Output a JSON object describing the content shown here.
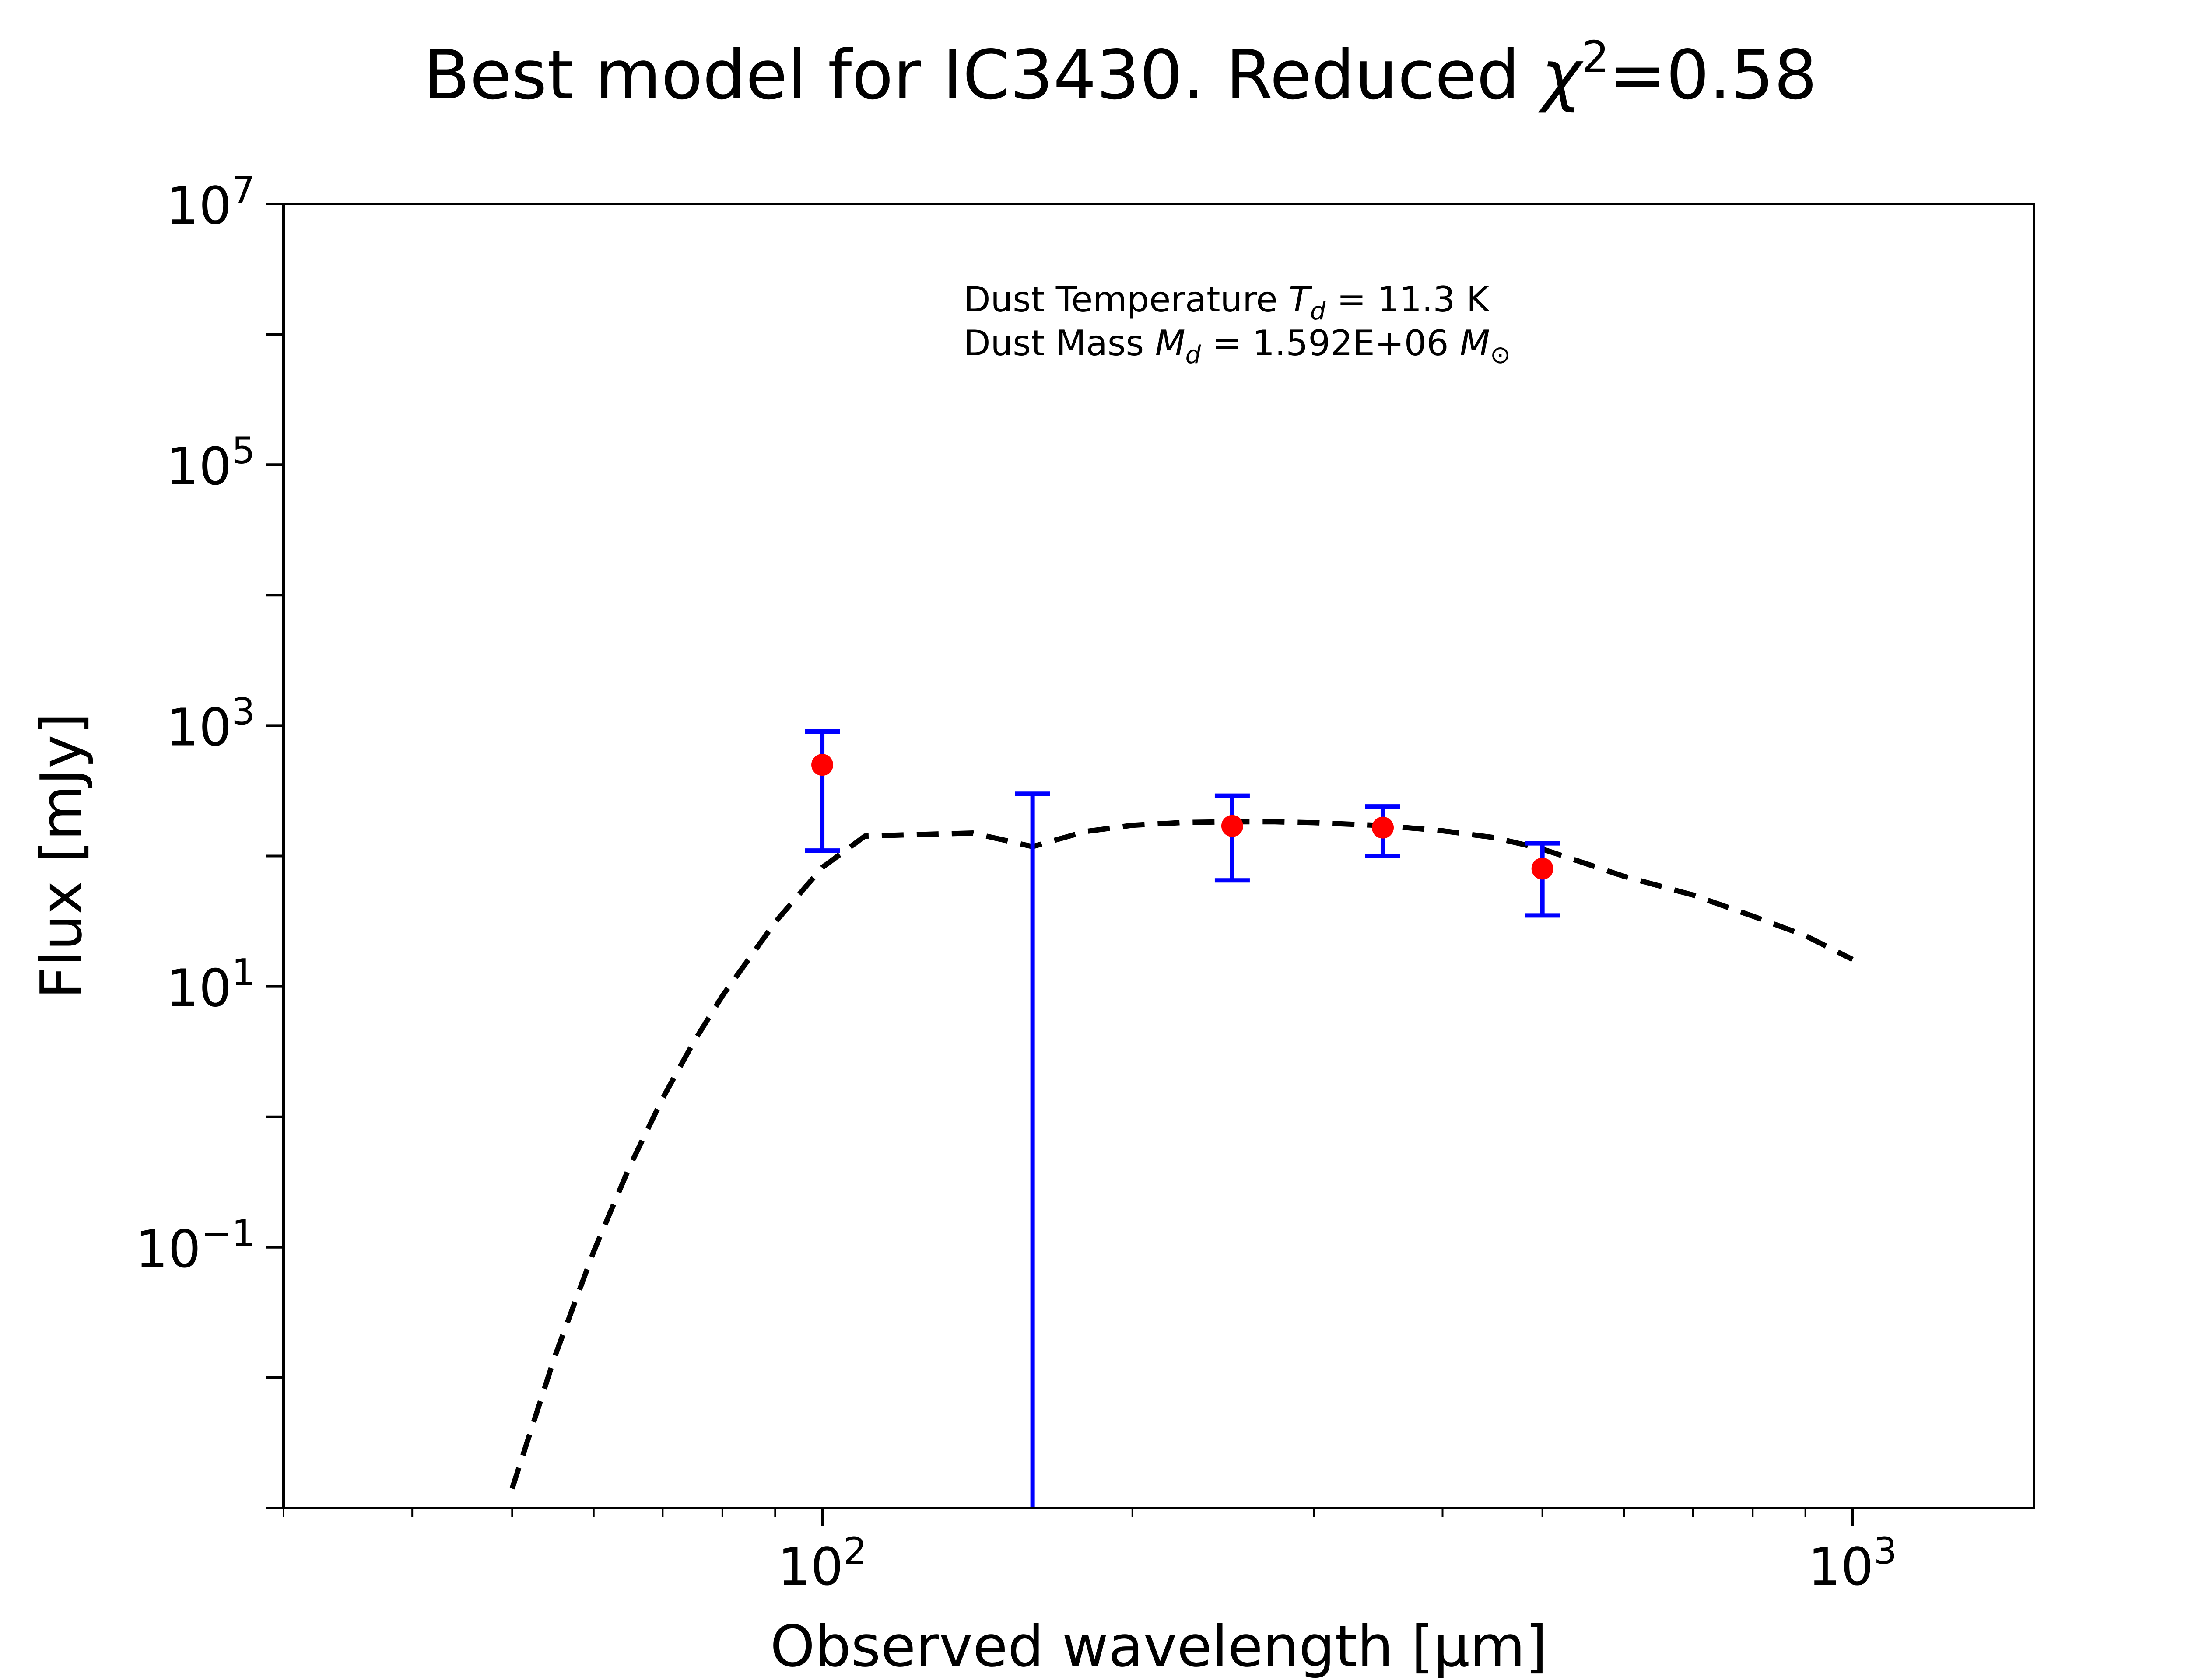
{
  "chart_data": {
    "type": "scatter",
    "title": {
      "text": "Best model for IC3430. Reduced ",
      "symbol": "χ",
      "superscript": "2",
      "suffix": "=0.58"
    },
    "xlabel": "Observed wavelength [μm]",
    "ylabel": "Flux [mJy]",
    "x_scale": "log",
    "y_scale": "log",
    "xlim": [
      30,
      1500
    ],
    "ylim": [
      0.001,
      10000000
    ],
    "x_ticks": [
      {
        "value": 100,
        "base": "10",
        "exp": "2"
      },
      {
        "value": 1000,
        "base": "10",
        "exp": "3"
      }
    ],
    "y_ticks": [
      {
        "value": 0.1,
        "base": "10",
        "exp": "−1"
      },
      {
        "value": 10,
        "base": "10",
        "exp": "1"
      },
      {
        "value": 1000,
        "base": "10",
        "exp": "3"
      },
      {
        "value": 100000,
        "base": "10",
        "exp": "5"
      },
      {
        "value": 10000000,
        "base": "10",
        "exp": "7"
      }
    ],
    "annotation": {
      "line1": {
        "prefix": "Dust Temperature ",
        "sym": "T",
        "sub": "d",
        "suffix": " = 11.3 K"
      },
      "line2": {
        "prefix": "Dust Mass ",
        "sym": "M",
        "sub": "d",
        "middle": " = 1.592E+06 ",
        "unit_sym": "M",
        "unit_sub": "⊙"
      }
    },
    "series": [
      {
        "type": "errorbar",
        "points": [
          {
            "x": 100,
            "y": 500,
            "ylow": 110,
            "yhigh": 900
          },
          {
            "x": 160,
            "y": null,
            "ylow": 0.001,
            "yhigh": 300
          },
          {
            "x": 250,
            "y": 170,
            "ylow": 65,
            "yhigh": 290
          },
          {
            "x": 350,
            "y": 165,
            "ylow": 100,
            "yhigh": 240
          },
          {
            "x": 500,
            "y": 80,
            "ylow": 35,
            "yhigh": 125
          }
        ]
      },
      {
        "type": "line",
        "style": "dashed",
        "x": [
          50,
          55,
          60,
          65,
          70,
          75,
          80,
          90,
          100,
          110,
          120,
          140,
          160,
          180,
          200,
          225,
          250,
          275,
          300,
          350,
          400,
          450,
          500,
          600,
          700,
          800,
          900,
          1000
        ],
        "y": [
          0.00141,
          0.0145,
          0.0928,
          0.414,
          1.39,
          3.73,
          8.47,
          31.0,
          81.6,
          142,
          145,
          150,
          118,
          154,
          172,
          181,
          183,
          183,
          180,
          171,
          156,
          138,
          113,
          69.9,
          50.2,
          34.6,
          24.5,
          16.1
        ]
      }
    ],
    "colors": {
      "axes": "#000000",
      "errorbar": "#0000ff",
      "marker": "#ff0000",
      "model_line": "#000000"
    },
    "grid": false,
    "legend": "none"
  }
}
